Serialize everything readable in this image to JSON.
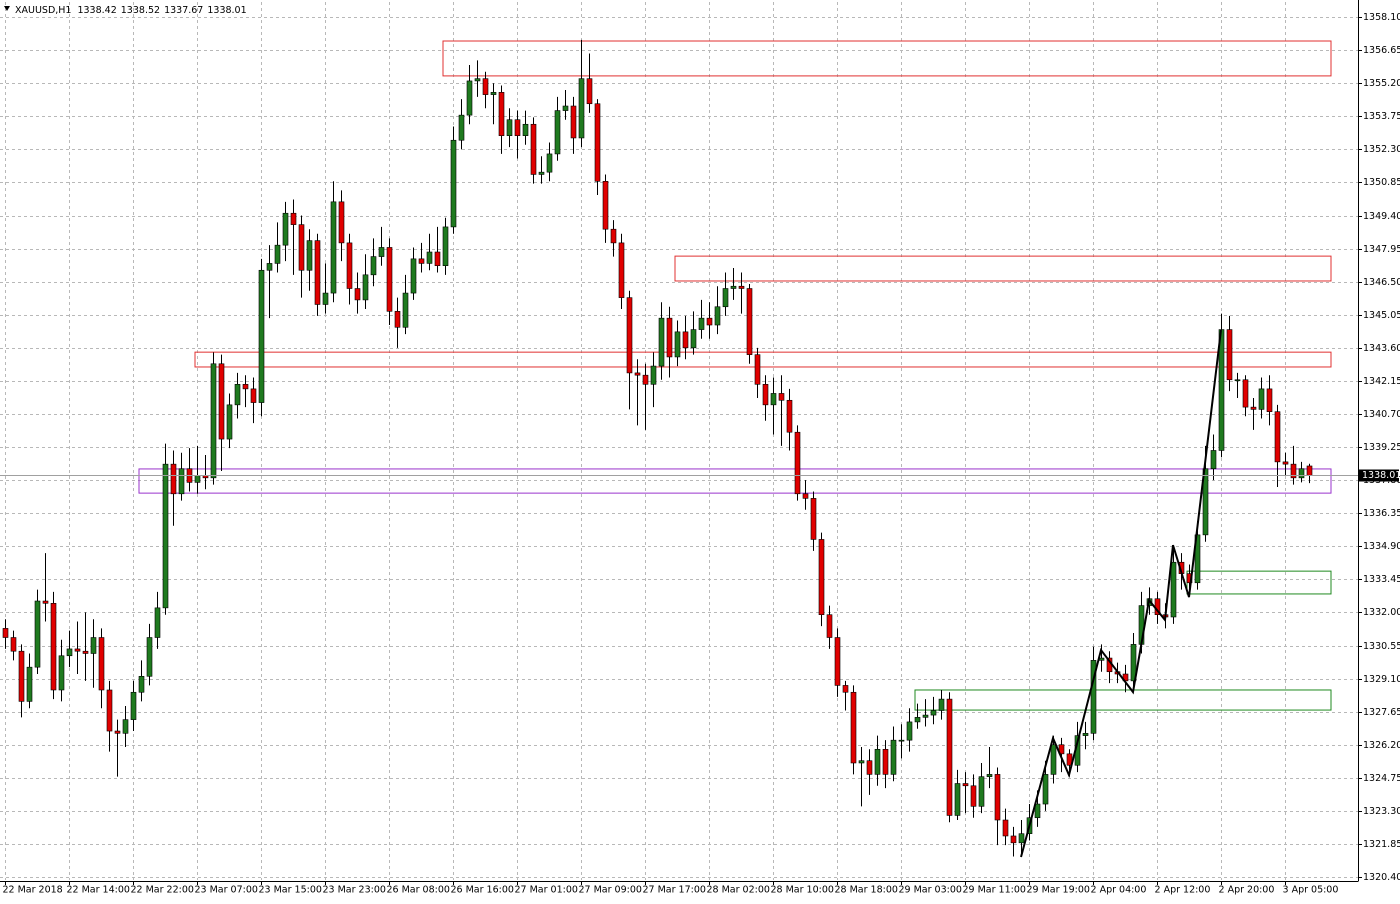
{
  "chart_data": {
    "type": "candlestick",
    "symbol": "XAUUSD,H1",
    "categories": [
      "22 Mar 2018",
      null,
      null,
      null,
      null,
      null,
      null,
      null,
      "22 Mar 14:00",
      null,
      null,
      null,
      null,
      null,
      null,
      null,
      "22 Mar 22:00",
      null,
      null,
      null,
      null,
      null,
      null,
      null,
      "23 Mar 07:00",
      null,
      null,
      null,
      null,
      null,
      null,
      null,
      "23 Mar 15:00",
      null,
      null,
      null,
      null,
      null,
      null,
      null,
      "23 Mar 23:00",
      null,
      null,
      null,
      null,
      null,
      null,
      null,
      "26 Mar 08:00",
      null,
      null,
      null,
      null,
      null,
      null,
      null,
      "26 Mar 16:00",
      null,
      null,
      null,
      null,
      null,
      null,
      null,
      "27 Mar 01:00",
      null,
      null,
      null,
      null,
      null,
      null,
      null,
      "27 Mar 09:00",
      null,
      null,
      null,
      null,
      null,
      null,
      null,
      "27 Mar 17:00",
      null,
      null,
      null,
      null,
      null,
      null,
      null,
      "28 Mar 02:00",
      null,
      null,
      null,
      null,
      null,
      null,
      null,
      "28 Mar 10:00",
      null,
      null,
      null,
      null,
      null,
      null,
      null,
      "28 Mar 18:00",
      null,
      null,
      null,
      null,
      null,
      null,
      null,
      "29 Mar 03:00",
      null,
      null,
      null,
      null,
      null,
      null,
      null,
      "29 Mar 11:00",
      null,
      null,
      null,
      null,
      null,
      null,
      null,
      "29 Mar 19:00",
      null,
      null,
      null,
      null,
      null,
      null,
      null,
      "2 Apr 04:00",
      null,
      null,
      null,
      null,
      null,
      null,
      null,
      "2 Apr 12:00",
      null,
      null,
      null,
      null,
      null,
      null,
      null,
      "2 Apr 20:00",
      null,
      null,
      null,
      null,
      null,
      null,
      null,
      "3 Apr 05:00",
      null,
      null,
      null
    ],
    "open": [
      1331.3,
      1330.9,
      1330.3,
      1328.1,
      1329.6,
      1332.5,
      1332.4,
      1328.6,
      1330.1,
      1330.4,
      1330.3,
      1330.2,
      1330.9,
      1328.6,
      1326.8,
      1326.7,
      1327.3,
      1328.5,
      1329.2,
      1330.9,
      1332.2,
      1338.5,
      1337.2,
      1338.3,
      1337.7,
      1338.0,
      1337.9,
      1342.9,
      1339.6,
      1341.1,
      1342.0,
      1341.8,
      1341.2,
      1347.0,
      1347.3,
      1348.1,
      1349.5,
      1349.0,
      1347.0,
      1348.3,
      1345.5,
      1346.0,
      1350.0,
      1348.2,
      1346.2,
      1345.7,
      1346.8,
      1347.6,
      1348.0,
      1345.2,
      1344.5,
      1346.0,
      1347.5,
      1347.3,
      1347.8,
      1347.2,
      1348.9,
      1352.7,
      1353.8,
      1355.3,
      1355.4,
      1354.7,
      1354.8,
      1352.9,
      1353.6,
      1352.9,
      1353.4,
      1351.2,
      1351.3,
      1352.1,
      1354.0,
      1354.2,
      1352.8,
      1355.4,
      1354.3,
      1350.9,
      1348.8,
      1348.2,
      1345.8,
      1342.5,
      1342.4,
      1342.0,
      1342.8,
      1344.9,
      1343.2,
      1344.3,
      1343.6,
      1344.4,
      1344.9,
      1344.6,
      1345.4,
      1346.2,
      1346.3,
      1346.2,
      1343.3,
      1342.0,
      1341.1,
      1341.6,
      1341.3,
      1339.9,
      1337.2,
      1337.0,
      1335.2,
      1331.9,
      1330.9,
      1328.8,
      1328.5,
      1325.4,
      1325.5,
      1324.9,
      1326.0,
      1324.9,
      1326.4,
      1326.4,
      1327.2,
      1327.4,
      1327.5,
      1327.7,
      1328.2,
      1323.1,
      1324.5,
      1324.4,
      1323.5,
      1324.8,
      1324.9,
      1322.9,
      1322.2,
      1321.9,
      1322.3,
      1323.0,
      1323.6,
      1324.9,
      1326.2,
      1325.8,
      1325.3,
      1326.6,
      1326.7,
      1329.9,
      1330.0,
      1329.4,
      1329.3,
      1329.0,
      1330.6,
      1332.3,
      1332.6,
      1331.9,
      1331.8,
      1334.2,
      1333.7,
      1333.3,
      1335.4,
      1338.3,
      1339.1,
      1344.4,
      1342.2,
      1342.2,
      1341.0,
      1340.9,
      1341.8,
      1340.8,
      1338.6,
      1338.5,
      1337.9,
      1338.42
    ],
    "high": [
      1331.7,
      1331.2,
      1330.6,
      1330.2,
      1333.0,
      1334.6,
      1332.9,
      1330.8,
      1331.2,
      1331.6,
      1332.0,
      1331.7,
      1331.3,
      1329.0,
      1327.3,
      1327.9,
      1329.0,
      1329.9,
      1331.5,
      1332.9,
      1339.4,
      1339.1,
      1339.0,
      1339.2,
      1339.3,
      1338.9,
      1343.4,
      1343.3,
      1341.6,
      1342.5,
      1342.4,
      1342.3,
      1347.5,
      1348.1,
      1349.1,
      1350.0,
      1350.1,
      1349.4,
      1348.8,
      1348.6,
      1347.3,
      1350.9,
      1350.5,
      1348.6,
      1346.9,
      1347.7,
      1348.4,
      1348.9,
      1348.4,
      1345.8,
      1346.8,
      1348.0,
      1348.2,
      1348.6,
      1348.9,
      1349.3,
      1353.3,
      1354.5,
      1356.0,
      1356.2,
      1355.7,
      1355.2,
      1355.1,
      1354.1,
      1354.0,
      1354.0,
      1353.7,
      1352.0,
      1352.6,
      1354.6,
      1354.9,
      1354.6,
      1357.1,
      1356.5,
      1354.5,
      1351.2,
      1349.2,
      1348.6,
      1346.1,
      1343.1,
      1342.9,
      1343.4,
      1345.6,
      1345.4,
      1344.8,
      1345.0,
      1345.2,
      1345.7,
      1345.6,
      1346.3,
      1346.9,
      1347.1,
      1346.9,
      1346.4,
      1343.6,
      1342.4,
      1342.3,
      1342.4,
      1341.8,
      1340.2,
      1337.8,
      1337.3,
      1335.5,
      1332.3,
      1331.3,
      1329.0,
      1328.8,
      1326.1,
      1326.0,
      1326.6,
      1326.4,
      1327.0,
      1327.1,
      1327.8,
      1328.0,
      1328.2,
      1328.3,
      1328.6,
      1328.5,
      1325.1,
      1325.0,
      1324.9,
      1325.4,
      1326.1,
      1325.2,
      1323.4,
      1322.6,
      1322.9,
      1323.6,
      1324.2,
      1325.5,
      1326.6,
      1326.5,
      1326.0,
      1327.2,
      1327.2,
      1330.5,
      1330.6,
      1330.3,
      1329.8,
      1329.7,
      1331.1,
      1332.9,
      1333.1,
      1332.9,
      1332.4,
      1334.8,
      1334.6,
      1334.1,
      1336.0,
      1339.3,
      1339.8,
      1345.1,
      1345.0,
      1342.5,
      1342.4,
      1341.4,
      1342.3,
      1342.4,
      1341.1,
      1339.0,
      1339.3,
      1338.6,
      1338.52
    ],
    "low": [
      1330.4,
      1329.9,
      1327.4,
      1327.8,
      1329.3,
      1331.6,
      1328.2,
      1328.1,
      1329.6,
      1329.3,
      1329.0,
      1328.7,
      1327.8,
      1325.9,
      1324.8,
      1326.1,
      1326.8,
      1328.1,
      1328.8,
      1330.4,
      1331.9,
      1335.8,
      1336.9,
      1337.3,
      1337.2,
      1337.4,
      1337.6,
      1338.2,
      1339.2,
      1340.5,
      1341.0,
      1340.3,
      1340.6,
      1344.9,
      1346.9,
      1347.4,
      1346.8,
      1345.8,
      1346.1,
      1345.0,
      1345.1,
      1345.6,
      1347.4,
      1345.5,
      1345.1,
      1345.3,
      1346.3,
      1347.2,
      1344.6,
      1343.6,
      1344.2,
      1345.7,
      1346.9,
      1347.0,
      1346.9,
      1346.8,
      1348.6,
      1352.3,
      1353.4,
      1354.6,
      1354.1,
      1353.4,
      1352.1,
      1352.4,
      1351.9,
      1352.5,
      1350.8,
      1350.8,
      1350.9,
      1351.8,
      1353.6,
      1352.1,
      1352.4,
      1353.9,
      1350.3,
      1348.2,
      1347.6,
      1345.3,
      1340.9,
      1340.2,
      1340.0,
      1341.0,
      1342.2,
      1342.3,
      1342.8,
      1343.1,
      1343.3,
      1344.0,
      1344.0,
      1344.2,
      1345.0,
      1345.7,
      1345.1,
      1342.9,
      1341.4,
      1340.4,
      1339.8,
      1339.3,
      1339.1,
      1336.9,
      1336.5,
      1334.7,
      1331.4,
      1330.4,
      1328.3,
      1327.7,
      1324.9,
      1323.5,
      1324.0,
      1324.4,
      1324.3,
      1324.6,
      1325.6,
      1325.9,
      1326.9,
      1327.0,
      1327.1,
      1327.3,
      1322.8,
      1322.9,
      1323.2,
      1323.0,
      1323.2,
      1324.3,
      1321.8,
      1321.8,
      1321.3,
      1321.4,
      1322.0,
      1322.6,
      1323.3,
      1324.5,
      1325.0,
      1324.8,
      1325.0,
      1326.0,
      1326.4,
      1329.4,
      1328.9,
      1328.9,
      1328.5,
      1328.6,
      1330.2,
      1331.9,
      1331.5,
      1331.3,
      1331.5,
      1333.0,
      1332.7,
      1333.0,
      1335.1,
      1337.8,
      1338.8,
      1341.7,
      1341.4,
      1340.6,
      1340.0,
      1340.5,
      1340.2,
      1337.5,
      1338.0,
      1337.6,
      1337.7,
      1337.67
    ],
    "close": [
      1330.9,
      1330.3,
      1328.1,
      1329.6,
      1332.5,
      1332.4,
      1328.6,
      1330.1,
      1330.4,
      1330.3,
      1330.2,
      1330.9,
      1328.6,
      1326.8,
      1326.7,
      1327.3,
      1328.5,
      1329.2,
      1330.9,
      1332.2,
      1338.5,
      1337.2,
      1338.3,
      1337.7,
      1338.0,
      1337.9,
      1342.9,
      1339.6,
      1341.1,
      1342.0,
      1341.8,
      1341.2,
      1347.0,
      1347.3,
      1348.1,
      1349.5,
      1349.0,
      1347.0,
      1348.3,
      1345.5,
      1346.0,
      1350.0,
      1348.2,
      1346.2,
      1345.7,
      1346.8,
      1347.6,
      1348.0,
      1345.2,
      1344.5,
      1346.0,
      1347.5,
      1347.3,
      1347.8,
      1347.2,
      1348.9,
      1352.7,
      1353.8,
      1355.3,
      1355.4,
      1354.7,
      1354.8,
      1352.9,
      1353.6,
      1352.9,
      1353.4,
      1351.2,
      1351.3,
      1352.1,
      1354.0,
      1354.2,
      1352.8,
      1355.4,
      1354.3,
      1350.9,
      1348.8,
      1348.2,
      1345.8,
      1342.5,
      1342.4,
      1342.0,
      1342.8,
      1344.9,
      1343.2,
      1344.3,
      1343.6,
      1344.4,
      1344.9,
      1344.6,
      1345.4,
      1346.2,
      1346.3,
      1346.2,
      1343.3,
      1342.0,
      1341.1,
      1341.6,
      1341.3,
      1339.9,
      1337.2,
      1337.0,
      1335.2,
      1331.9,
      1330.9,
      1328.8,
      1328.5,
      1325.4,
      1325.5,
      1324.9,
      1326.0,
      1324.9,
      1326.4,
      1326.4,
      1327.2,
      1327.4,
      1327.5,
      1327.7,
      1328.2,
      1323.1,
      1324.5,
      1324.4,
      1323.5,
      1324.8,
      1324.9,
      1322.9,
      1322.2,
      1321.9,
      1322.3,
      1323.0,
      1323.6,
      1324.9,
      1326.2,
      1325.8,
      1325.3,
      1326.6,
      1326.7,
      1329.9,
      1330.0,
      1329.4,
      1329.3,
      1329.0,
      1330.6,
      1332.3,
      1332.6,
      1331.9,
      1331.8,
      1334.2,
      1333.7,
      1333.3,
      1335.4,
      1338.3,
      1339.1,
      1344.4,
      1342.2,
      1342.2,
      1341.0,
      1340.9,
      1341.8,
      1340.8,
      1338.6,
      1338.5,
      1337.9,
      1338.3,
      1338.01
    ],
    "colors": {
      "up": "#1f7a1f",
      "down": "#e00000",
      "wick": "#000000",
      "price_line": "#a0a0a0"
    },
    "ylim": [
      1320.27,
      1358.76
    ],
    "yticks": [
      {
        "value": 1358.1,
        "label": "1358.10"
      },
      1356.65,
      {
        "value": 1355.2,
        "label": "1355.20"
      },
      1353.75,
      {
        "value": 1352.3,
        "label": "1352.30"
      },
      1350.85,
      {
        "value": 1349.4,
        "label": "1349.40"
      },
      1347.95,
      {
        "value": 1346.5,
        "label": "1346.50"
      },
      1345.05,
      {
        "value": 1343.6,
        "label": "1343.60"
      },
      1342.15,
      {
        "value": 1340.7,
        "label": "1340.70"
      },
      1339.25,
      {
        "value": 1337.8,
        "label": "1337.80"
      },
      1336.35,
      {
        "value": 1334.9,
        "label": "1334.90"
      },
      1333.45,
      {
        "value": 1332,
        "label": "1332.00"
      },
      1330.55,
      {
        "value": 1329.1,
        "label": "1329.10"
      },
      1327.65,
      {
        "value": 1326.2,
        "label": "1326.20"
      },
      1324.75,
      {
        "value": 1323.3,
        "label": "1323.30"
      },
      1321.85,
      {
        "value": 1320.4,
        "label": "1320.40"
      }
    ],
    "grid": true,
    "zones": [
      {
        "start": 55,
        "low": 1355.52,
        "high": 1357.05,
        "color": "#e03030"
      },
      {
        "start": 84,
        "low": 1346.53,
        "high": 1347.62,
        "color": "#e03030"
      },
      {
        "start": 24,
        "low": 1342.76,
        "high": 1343.41,
        "color": "#e03030"
      },
      {
        "start": 17,
        "low": 1337.23,
        "high": 1338.29,
        "color": "#9933cc"
      },
      {
        "start": 148,
        "low": 1332.81,
        "high": 1333.81,
        "color": "#1f8a1f"
      },
      {
        "start": 114,
        "low": 1327.72,
        "high": 1328.6,
        "color": "#1f8a1f"
      }
    ],
    "zigzag": {
      "color": "#000000",
      "x": [
        127,
        131,
        133,
        137,
        141,
        143,
        145,
        146,
        148,
        152
      ],
      "values": [
        1321.28,
        1326.49,
        1324.87,
        1330.35,
        1328.51,
        1332.54,
        1331.67,
        1334.95,
        1332.67,
        1344.38
      ]
    }
  }
}
